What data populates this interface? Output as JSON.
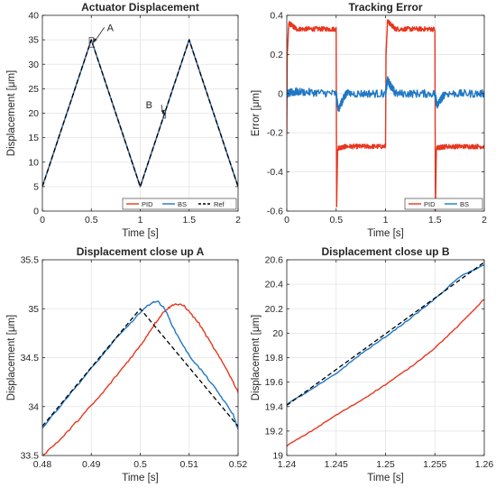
{
  "colors": {
    "pid": "#e8361e",
    "bs": "#1f77c4",
    "ref": "#000000",
    "grid": "#e3e3e3",
    "axis": "#262626"
  },
  "chart_data": [
    {
      "type": "line",
      "title": "Actuator Displacement",
      "xlabel": "Time [s]",
      "ylabel": "Displacement [μm]",
      "xlim": [
        0,
        2
      ],
      "ylim": [
        0,
        40
      ],
      "xticks": [
        0,
        0.5,
        1,
        1.5,
        2
      ],
      "xticklabels": [
        "0",
        "0.5",
        "1",
        "1.5",
        "2"
      ],
      "yticks": [
        0,
        5,
        10,
        15,
        20,
        25,
        30,
        35,
        40
      ],
      "yticklabels": [
        "0",
        "5",
        "10",
        "15",
        "20",
        "25",
        "30",
        "35",
        "40"
      ],
      "grid": true,
      "legend": {
        "position": "bottom-right",
        "entries": [
          "PID",
          "BS",
          "Ref"
        ]
      },
      "annotations": [
        {
          "text": "A",
          "box_x": [
            0.48,
            0.52
          ],
          "box_y": [
            33.5,
            35.5
          ],
          "label_at": [
            0.66,
            36.8
          ]
        },
        {
          "text": "B",
          "box_x": [
            1.24,
            1.26
          ],
          "box_y": [
            19.0,
            20.6
          ],
          "label_at": [
            1.18,
            21.0
          ]
        }
      ],
      "series": [
        {
          "name": "PID",
          "x": [
            0,
            0.5,
            1,
            1.5,
            2
          ],
          "y": [
            5,
            35,
            5,
            35,
            5
          ]
        },
        {
          "name": "BS",
          "x": [
            0,
            0.5,
            1,
            1.5,
            2
          ],
          "y": [
            5,
            35,
            5,
            35,
            5
          ]
        },
        {
          "name": "Ref",
          "x": [
            0,
            0.5,
            1,
            1.5,
            2
          ],
          "y": [
            5,
            35,
            5,
            35,
            5
          ]
        }
      ]
    },
    {
      "type": "line",
      "title": "Tracking Error",
      "xlabel": "Time [s]",
      "ylabel": "Error [μm]",
      "xlim": [
        0,
        2
      ],
      "ylim": [
        -0.6,
        0.4
      ],
      "xticks": [
        0,
        0.5,
        1,
        1.5,
        2
      ],
      "xticklabels": [
        "0",
        "0.5",
        "1",
        "1.5",
        "2"
      ],
      "yticks": [
        -0.6,
        -0.4,
        -0.2,
        0,
        0.2,
        0.4
      ],
      "yticklabels": [
        "-0.6",
        "-0.4",
        "-0.2",
        "0",
        "0.2",
        "0.4"
      ],
      "grid": true,
      "legend": {
        "position": "bottom-right",
        "entries": [
          "PID",
          "BS"
        ]
      },
      "series": [
        {
          "name": "PID",
          "x": [
            0,
            0.005,
            0.02,
            0.1,
            0.3,
            0.5,
            0.505,
            0.515,
            0.6,
            0.8,
            1.0,
            1.005,
            1.02,
            1.1,
            1.3,
            1.5,
            1.505,
            1.515,
            1.6,
            1.8,
            2.0
          ],
          "y": [
            -0.2,
            0.2,
            0.36,
            0.33,
            0.33,
            0.33,
            -0.58,
            -0.28,
            -0.27,
            -0.27,
            -0.27,
            0.2,
            0.37,
            0.33,
            0.33,
            0.33,
            -0.6,
            -0.28,
            -0.27,
            -0.27,
            -0.27
          ]
        },
        {
          "name": "BS",
          "x": [
            0,
            0.1,
            0.5,
            0.52,
            0.6,
            1.0,
            1.02,
            1.1,
            1.5,
            1.52,
            1.6,
            2.0
          ],
          "y": [
            0,
            0.01,
            0,
            -0.08,
            0,
            0,
            0.07,
            0,
            0,
            -0.06,
            0,
            0
          ]
        }
      ]
    },
    {
      "type": "line",
      "title": "Displacement close up A",
      "xlabel": "Time [s]",
      "ylabel": "Displacement [μm]",
      "xlim": [
        0.48,
        0.52
      ],
      "ylim": [
        33.5,
        35.5
      ],
      "xticks": [
        0.48,
        0.49,
        0.5,
        0.51,
        0.52
      ],
      "xticklabels": [
        "0.48",
        "0.49",
        "0.5",
        "0.51",
        "0.52"
      ],
      "yticks": [
        33.5,
        34,
        34.5,
        35,
        35.5
      ],
      "yticklabels": [
        "33.5",
        "34",
        "34.5",
        "35",
        "35.5"
      ],
      "grid": true,
      "series": [
        {
          "name": "PID",
          "x": [
            0.48,
            0.484,
            0.488,
            0.492,
            0.496,
            0.5,
            0.503,
            0.505,
            0.507,
            0.509,
            0.512,
            0.515,
            0.518,
            0.52
          ],
          "y": [
            33.5,
            33.68,
            33.9,
            34.12,
            34.37,
            34.62,
            34.85,
            34.98,
            35.05,
            35.03,
            34.85,
            34.6,
            34.35,
            34.15
          ]
        },
        {
          "name": "BS",
          "x": [
            0.48,
            0.485,
            0.49,
            0.495,
            0.5,
            0.502,
            0.5035,
            0.505,
            0.507,
            0.51,
            0.513,
            0.516,
            0.519,
            0.52
          ],
          "y": [
            33.78,
            34.09,
            34.39,
            34.69,
            34.96,
            35.05,
            35.08,
            35.0,
            34.78,
            34.52,
            34.34,
            34.14,
            33.92,
            33.76
          ]
        },
        {
          "name": "Ref",
          "x": [
            0.48,
            0.5,
            0.52
          ],
          "y": [
            33.8,
            35.0,
            33.8
          ]
        }
      ]
    },
    {
      "type": "line",
      "title": "Displacement close up B",
      "xlabel": "Time [s]",
      "ylabel": "Displacement [μm]",
      "xlim": [
        1.24,
        1.26
      ],
      "ylim": [
        19.0,
        20.6
      ],
      "xticks": [
        1.24,
        1.245,
        1.25,
        1.255,
        1.26
      ],
      "xticklabels": [
        "1.24",
        "1.245",
        "1.25",
        "1.255",
        "1.26"
      ],
      "yticks": [
        19.0,
        19.2,
        19.4,
        19.6,
        19.8,
        20.0,
        20.2,
        20.4,
        20.6
      ],
      "yticklabels": [
        "19",
        "19.2",
        "19.4",
        "19.6",
        "19.8",
        "20",
        "20.2",
        "20.4",
        "20.6"
      ],
      "grid": true,
      "series": [
        {
          "name": "PID",
          "x": [
            1.24,
            1.2425,
            1.245,
            1.2475,
            1.25,
            1.2525,
            1.255,
            1.2575,
            1.26
          ],
          "y": [
            19.08,
            19.2,
            19.33,
            19.45,
            19.58,
            19.72,
            19.88,
            20.07,
            20.28
          ]
        },
        {
          "name": "BS",
          "x": [
            1.24,
            1.2425,
            1.245,
            1.2475,
            1.25,
            1.2525,
            1.255,
            1.2575,
            1.26
          ],
          "y": [
            19.42,
            19.54,
            19.67,
            19.83,
            19.97,
            20.12,
            20.28,
            20.46,
            20.56
          ]
        },
        {
          "name": "Ref",
          "x": [
            1.24,
            1.26
          ],
          "y": [
            19.41,
            20.58
          ]
        }
      ]
    }
  ]
}
